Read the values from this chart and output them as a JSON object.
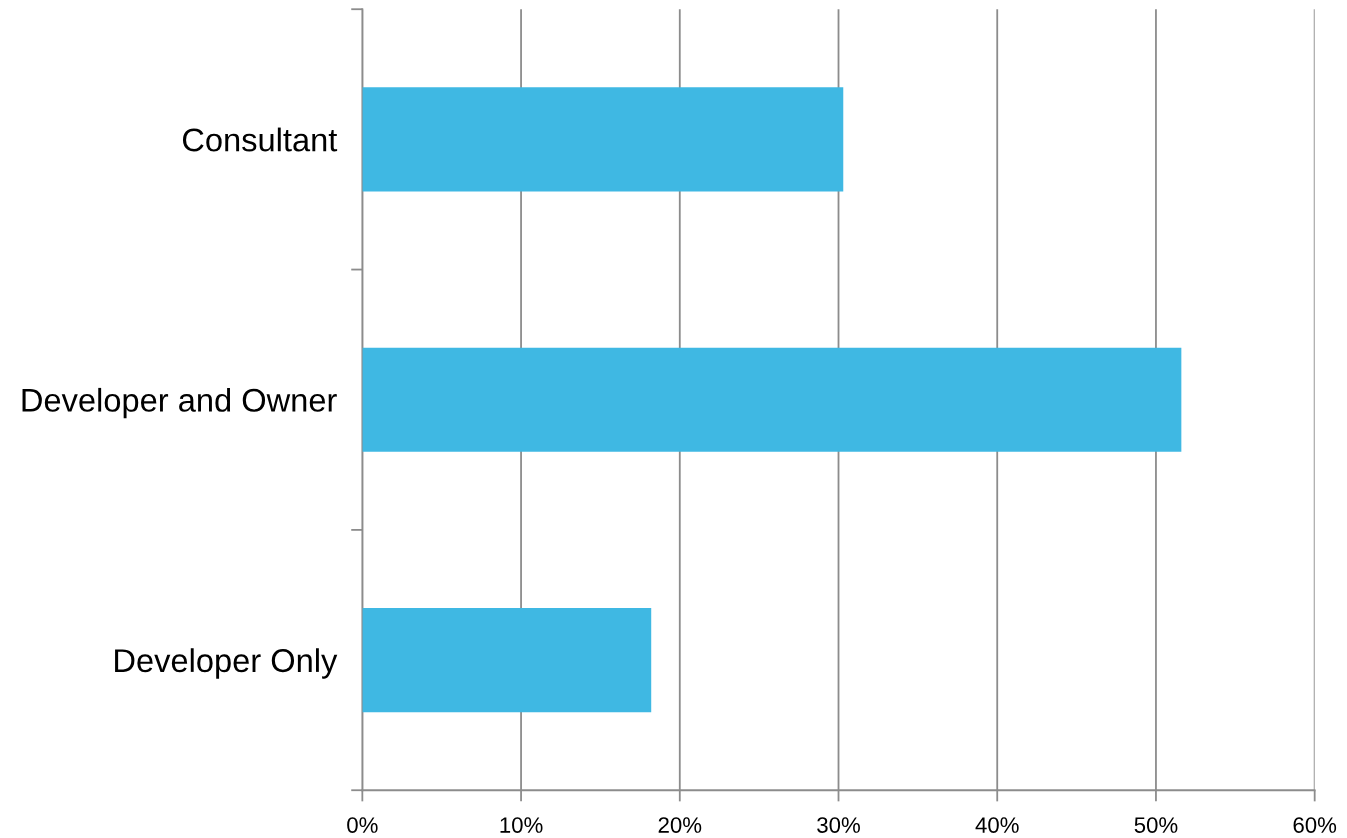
{
  "chart_data": {
    "type": "bar",
    "orientation": "horizontal",
    "categories": [
      "Consultant",
      "Developer and Owner",
      "Developer Only"
    ],
    "values": [
      30.3,
      51.6,
      18.2
    ],
    "color": "#3fb8e3",
    "xlim": [
      0,
      60
    ],
    "xticks": [
      {
        "value": 0,
        "label": "0%"
      },
      {
        "value": 10,
        "label": "10%"
      },
      {
        "value": 20,
        "label": "20%"
      },
      {
        "value": 30,
        "label": "30%"
      },
      {
        "value": 40,
        "label": "40%"
      },
      {
        "value": 50,
        "label": "50%"
      },
      {
        "value": 60,
        "label": "60%"
      }
    ],
    "grid": "x"
  }
}
